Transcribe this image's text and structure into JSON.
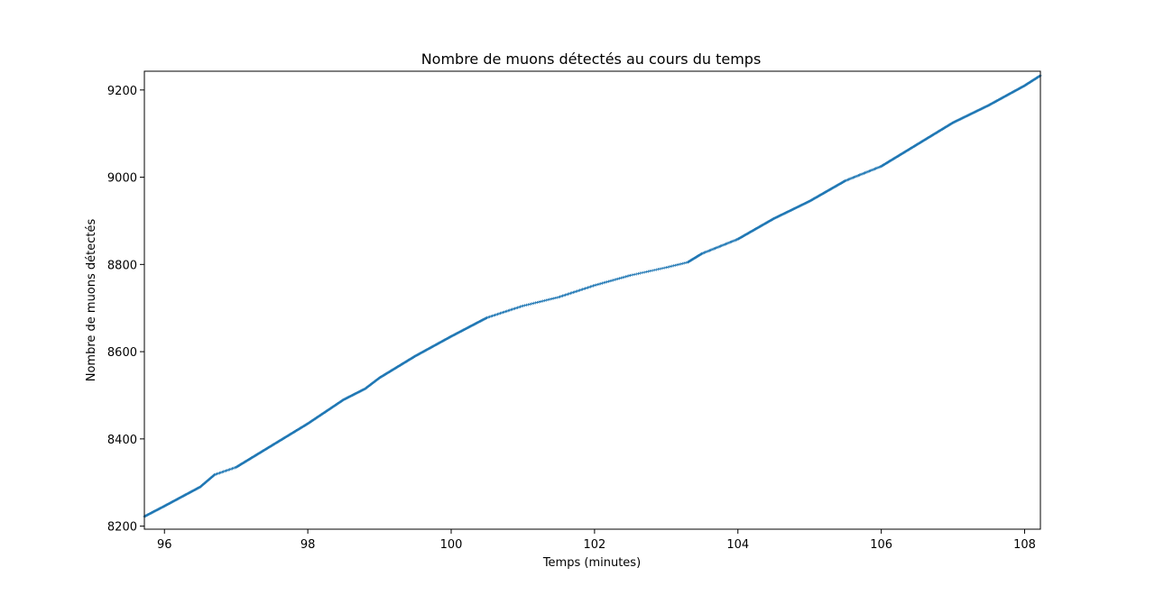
{
  "chart_data": {
    "type": "scatter",
    "title": "Nombre de muons détectés au cours du temps",
    "xlabel": "Temps (minutes)",
    "ylabel": "Nombre de muons détectés",
    "xlim": [
      95.72,
      108.22
    ],
    "ylim": [
      8193,
      9243
    ],
    "xticks": [
      96,
      98,
      100,
      102,
      104,
      106,
      108
    ],
    "yticks": [
      8200,
      8400,
      8600,
      8800,
      9000,
      9200
    ],
    "marker": "+",
    "color": "#1f77b4",
    "grid": false,
    "series": [
      {
        "anchors": [
          [
            95.72,
            8222
          ],
          [
            96.0,
            8246
          ],
          [
            96.5,
            8290
          ],
          [
            96.7,
            8318
          ],
          [
            97.0,
            8335
          ],
          [
            97.5,
            8385
          ],
          [
            98.0,
            8435
          ],
          [
            98.5,
            8490
          ],
          [
            98.8,
            8515
          ],
          [
            99.0,
            8540
          ],
          [
            99.5,
            8590
          ],
          [
            100.0,
            8635
          ],
          [
            100.5,
            8678
          ],
          [
            101.0,
            8705
          ],
          [
            101.5,
            8725
          ],
          [
            102.0,
            8752
          ],
          [
            102.5,
            8775
          ],
          [
            103.0,
            8793
          ],
          [
            103.3,
            8805
          ],
          [
            103.5,
            8825
          ],
          [
            104.0,
            8858
          ],
          [
            104.5,
            8905
          ],
          [
            105.0,
            8945
          ],
          [
            105.5,
            8992
          ],
          [
            106.0,
            9025
          ],
          [
            106.5,
            9075
          ],
          [
            107.0,
            9125
          ],
          [
            107.5,
            9165
          ],
          [
            108.0,
            9210
          ],
          [
            108.22,
            9233
          ]
        ]
      }
    ]
  }
}
